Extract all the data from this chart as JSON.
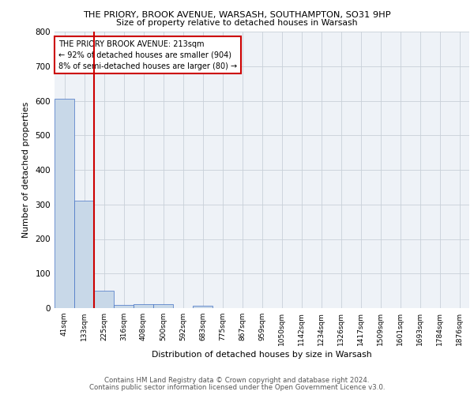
{
  "title1": "THE PRIORY, BROOK AVENUE, WARSASH, SOUTHAMPTON, SO31 9HP",
  "title2": "Size of property relative to detached houses in Warsash",
  "xlabel": "Distribution of detached houses by size in Warsash",
  "ylabel": "Number of detached properties",
  "bin_labels": [
    "41sqm",
    "133sqm",
    "225sqm",
    "316sqm",
    "408sqm",
    "500sqm",
    "592sqm",
    "683sqm",
    "775sqm",
    "867sqm",
    "959sqm",
    "1050sqm",
    "1142sqm",
    "1234sqm",
    "1326sqm",
    "1417sqm",
    "1509sqm",
    "1601sqm",
    "1693sqm",
    "1784sqm",
    "1876sqm"
  ],
  "bin_values": [
    606,
    310,
    50,
    10,
    11,
    11,
    0,
    8,
    0,
    0,
    0,
    0,
    0,
    0,
    0,
    0,
    0,
    0,
    0,
    0,
    0
  ],
  "bar_color": "#c8d8e8",
  "bar_edge_color": "#4472c4",
  "red_line_bin_index": 2,
  "annotation_text": "THE PRIORY BROOK AVENUE: 213sqm\n← 92% of detached houses are smaller (904)\n8% of semi-detached houses are larger (80) →",
  "annotation_box_color": "white",
  "annotation_box_edge": "#cc0000",
  "red_line_color": "#cc0000",
  "grid_color": "#c8d0d8",
  "bg_color": "#eef2f7",
  "footer1": "Contains HM Land Registry data © Crown copyright and database right 2024.",
  "footer2": "Contains public sector information licensed under the Open Government Licence v3.0.",
  "ylim": [
    0,
    800
  ],
  "yticks": [
    0,
    100,
    200,
    300,
    400,
    500,
    600,
    700,
    800
  ]
}
